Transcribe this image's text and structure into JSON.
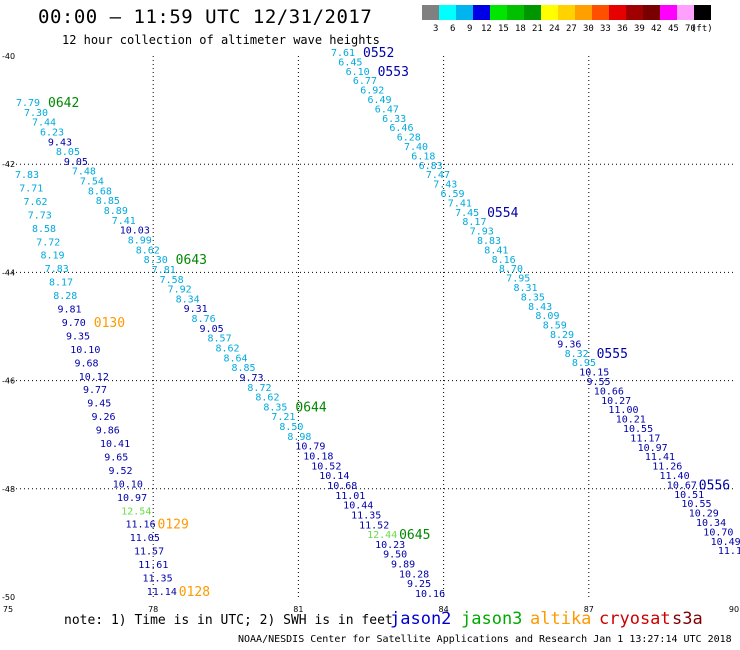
{
  "header": {
    "title": "00:00 – 11:59 UTC 12/31/2017",
    "subtitle": "12 hour collection of altimeter wave heights"
  },
  "color_scale": {
    "unit_label": "(ft)",
    "bins": [
      {
        "label": "3",
        "color": "#808080"
      },
      {
        "label": "6",
        "color": "#00ffff"
      },
      {
        "label": "9",
        "color": "#00b4f0"
      },
      {
        "label": "12",
        "color": "#0000e6"
      },
      {
        "label": "15",
        "color": "#00e600"
      },
      {
        "label": "18",
        "color": "#00c000"
      },
      {
        "label": "21",
        "color": "#009600"
      },
      {
        "label": "24",
        "color": "#ffff00"
      },
      {
        "label": "27",
        "color": "#ffd200"
      },
      {
        "label": "30",
        "color": "#ffa000"
      },
      {
        "label": "33",
        "color": "#ff5000"
      },
      {
        "label": "36",
        "color": "#e60000"
      },
      {
        "label": "39",
        "color": "#a00000"
      },
      {
        "label": "42",
        "color": "#780000"
      },
      {
        "label": "45",
        "color": "#ff00ff"
      },
      {
        "label": "70",
        "color": "#ffa0ff"
      },
      {
        "label": "",
        "color": "#000000"
      }
    ]
  },
  "map": {
    "lon_labels": [
      "75",
      "78",
      "81",
      "84",
      "87",
      "90"
    ],
    "lat_labels": [
      "-40",
      "-42",
      "-44",
      "-46",
      "-48",
      "-50"
    ],
    "colors": {
      "cyan": "#00aadd",
      "blue": "#0000aa",
      "green": "#008800",
      "lightgreen": "#66dd44",
      "orange": "#ff9900"
    },
    "passes": [
      {
        "name": "A",
        "time": "0642",
        "time_color": "green",
        "values": [
          "7.79",
          "7.30",
          "7.44",
          "6.23",
          "9.43",
          "8.05",
          "9.05",
          "7.48",
          "7.54",
          "8.68",
          "8.85",
          "8.89",
          "7.41",
          "10.03",
          "8.99",
          "8.62",
          "8.30",
          "7.81",
          "7.58",
          "7.92",
          "8.34",
          "9.31",
          "8.76",
          "9.05",
          "8.57",
          "8.62",
          "8.64",
          "8.85",
          "9.73",
          "8.72",
          "8.62",
          "8.35",
          "7.21",
          "8.50",
          "8.98",
          "10.79",
          "10.18",
          "10.52",
          "10.14",
          "10.68",
          "11.01",
          "10.44",
          "11.35",
          "11.52",
          "12.44",
          "10.23",
          "9.50",
          "9.89",
          "10.28",
          "9.25",
          "10.16"
        ],
        "colors": [
          "cyan",
          "cyan",
          "cyan",
          "cyan",
          "blue",
          "cyan",
          "blue",
          "cyan",
          "cyan",
          "cyan",
          "cyan",
          "cyan",
          "cyan",
          "blue",
          "cyan",
          "cyan",
          "cyan",
          "cyan",
          "cyan",
          "cyan",
          "cyan",
          "blue",
          "cyan",
          "blue",
          "cyan",
          "cyan",
          "cyan",
          "cyan",
          "blue",
          "cyan",
          "cyan",
          "cyan",
          "cyan",
          "cyan",
          "cyan",
          "blue",
          "blue",
          "blue",
          "blue",
          "blue",
          "blue",
          "blue",
          "blue",
          "blue",
          "lightgreen",
          "blue",
          "blue",
          "blue",
          "blue",
          "blue",
          "blue"
        ],
        "time_labels": [
          {
            "text": "0642",
            "at": 0,
            "color": "green"
          },
          {
            "text": "0643",
            "at": 16,
            "color": "green"
          },
          {
            "text": "0644",
            "at": 31,
            "color": "green"
          },
          {
            "text": "0645",
            "at": 44,
            "color": "green"
          }
        ]
      },
      {
        "name": "B",
        "time": "0552",
        "time_color": "blue",
        "values": [
          "7.61",
          "6.45",
          "6.10",
          "6.77",
          "6.92",
          "6.49",
          "6.47",
          "6.33",
          "6.46",
          "6.28",
          "7.40",
          "6.18",
          "6.83",
          "7.47",
          "7.43",
          "6.59",
          "7.41",
          "7.45",
          "8.17",
          "7.93",
          "8.83",
          "8.41",
          "8.16",
          "8.70",
          "7.95",
          "8.31",
          "8.35",
          "8.43",
          "8.09",
          "8.59",
          "8.29",
          "9.36",
          "8.32",
          "8.95",
          "10.15",
          "9.55",
          "10.66",
          "10.27",
          "11.00",
          "10.21",
          "10.55",
          "11.17",
          "10.97",
          "11.41",
          "11.26",
          "11.40",
          "10.67",
          "10.51",
          "10.55",
          "10.29",
          "10.34",
          "10.70",
          "10.49",
          "11.1"
        ],
        "colors": [
          "cyan",
          "cyan",
          "cyan",
          "cyan",
          "cyan",
          "cyan",
          "cyan",
          "cyan",
          "cyan",
          "cyan",
          "cyan",
          "cyan",
          "cyan",
          "cyan",
          "cyan",
          "cyan",
          "cyan",
          "cyan",
          "cyan",
          "cyan",
          "cyan",
          "cyan",
          "cyan",
          "cyan",
          "cyan",
          "cyan",
          "cyan",
          "cyan",
          "cyan",
          "cyan",
          "cyan",
          "blue",
          "cyan",
          "cyan",
          "blue",
          "blue",
          "blue",
          "blue",
          "blue",
          "blue",
          "blue",
          "blue",
          "blue",
          "blue",
          "blue",
          "blue",
          "blue",
          "blue",
          "blue",
          "blue",
          "blue",
          "blue",
          "blue",
          "blue"
        ],
        "time_labels": [
          {
            "text": "0552",
            "at": 0,
            "color": "blue"
          },
          {
            "text": "0553",
            "at": 2,
            "color": "blue"
          },
          {
            "text": "0554",
            "at": 17,
            "color": "blue"
          },
          {
            "text": "0555",
            "at": 32,
            "color": "blue"
          },
          {
            "text": "0556",
            "at": 46,
            "color": "blue"
          }
        ]
      },
      {
        "name": "C",
        "time": "0130",
        "time_color": "orange",
        "values": [
          "7.83",
          "7.71",
          "7.62",
          "7.73",
          "8.58",
          "7.72",
          "8.19",
          "7.83",
          "8.17",
          "8.28",
          "9.81",
          "9.70",
          "9.35",
          "10.10",
          "9.68",
          "10.12",
          "9.77",
          "9.45",
          "9.26",
          "9.86",
          "10.41",
          "9.65",
          "9.52",
          "10.10",
          "10.97",
          "12.54",
          "11.16",
          "11.05",
          "11.57",
          "11.61",
          "11.35",
          "11.14"
        ],
        "colors": [
          "cyan",
          "cyan",
          "cyan",
          "cyan",
          "cyan",
          "cyan",
          "cyan",
          "cyan",
          "cyan",
          "cyan",
          "blue",
          "blue",
          "blue",
          "blue",
          "blue",
          "blue",
          "blue",
          "blue",
          "blue",
          "blue",
          "blue",
          "blue",
          "blue",
          "blue",
          "blue",
          "lightgreen",
          "blue",
          "blue",
          "blue",
          "blue",
          "blue",
          "blue"
        ],
        "time_labels": [
          {
            "text": "0130",
            "at": 11,
            "color": "orange"
          },
          {
            "text": "0129",
            "at": 26,
            "color": "orange"
          },
          {
            "text": "0128",
            "at": 31,
            "color": "orange"
          }
        ]
      }
    ]
  },
  "footer": {
    "note": "note: 1) Time is in UTC; 2) SWH is in feet",
    "credit": "NOAA/NESDIS Center for Satellite Applications and Research   Jan  1 13:27:14 UTC 2018",
    "legend": [
      {
        "label": "jason2",
        "color": "#0000cc"
      },
      {
        "label": "jason3",
        "color": "#00aa00"
      },
      {
        "label": "altika",
        "color": "#ff9900"
      },
      {
        "label": "cryosat",
        "color": "#cc0000"
      },
      {
        "label": "s3a",
        "color": "#800000"
      }
    ]
  }
}
